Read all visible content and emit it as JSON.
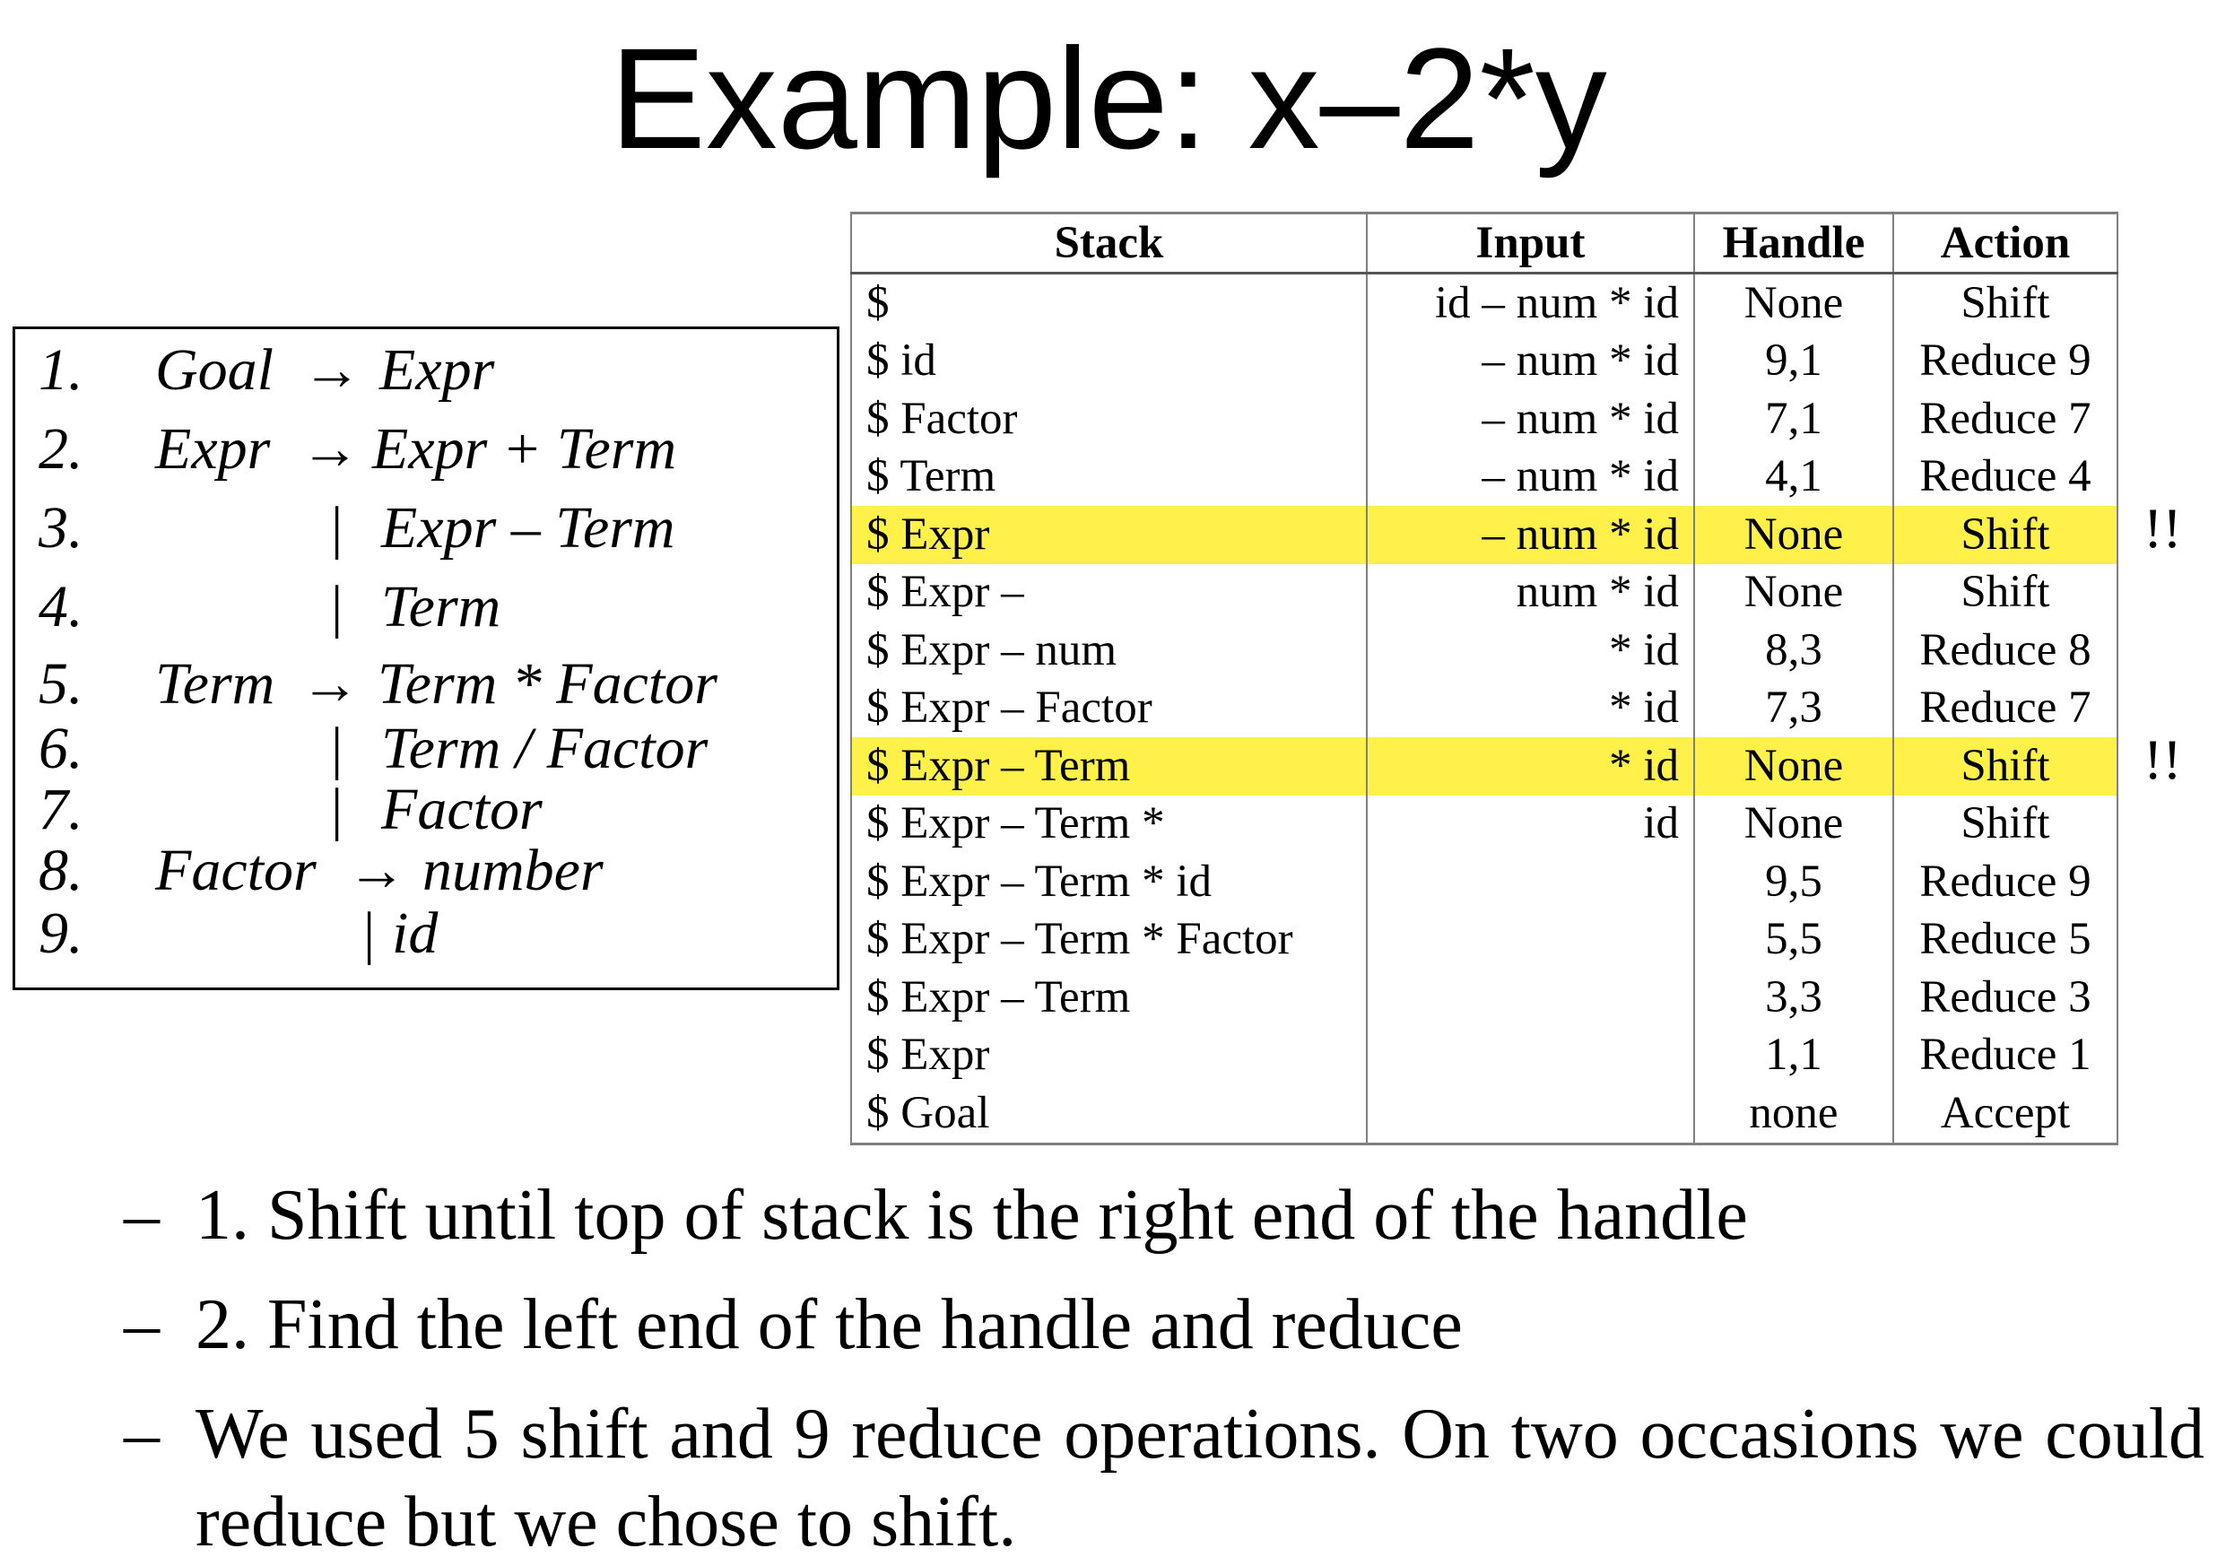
{
  "slide": {
    "title": "Example: x–2*y"
  },
  "grammar": [
    {
      "num": "1.",
      "lhs": "Goal",
      "arrow": "→",
      "bar": "",
      "rhs": "Expr"
    },
    {
      "num": "2.",
      "lhs": "Expr",
      "arrow": "→",
      "bar": "",
      "rhs": "Expr + Term"
    },
    {
      "num": "3.",
      "lhs": "",
      "arrow": "",
      "bar": "|",
      "rhs": "Expr – Term"
    },
    {
      "num": "4.",
      "lhs": "",
      "arrow": "",
      "bar": "|",
      "rhs": "Term"
    },
    {
      "num": "5.",
      "lhs": "Term",
      "arrow": "→",
      "bar": "",
      "rhs": "Term * Factor"
    },
    {
      "num": "6.",
      "lhs": "",
      "arrow": "",
      "bar": "|",
      "rhs": "Term / Factor"
    },
    {
      "num": "7.",
      "lhs": "",
      "arrow": "",
      "bar": "|",
      "rhs": "Factor"
    },
    {
      "num": "8.",
      "lhs": "Factor",
      "arrow": "→",
      "bar": "",
      "rhs": "number"
    },
    {
      "num": "9.",
      "lhs": "",
      "arrow": "",
      "bar": "|",
      "rhs": "id"
    }
  ],
  "table": {
    "headers": [
      "Stack",
      "Input",
      "Handle",
      "Action"
    ],
    "rows": [
      {
        "stack": "$",
        "input": "id – num * id",
        "handle": "None",
        "action": "Shift",
        "mark": ""
      },
      {
        "stack": "$ id",
        "input": "– num * id",
        "handle": "9,1",
        "action": "Reduce 9",
        "mark": ""
      },
      {
        "stack": "$ Factor",
        "input": "– num * id",
        "handle": "7,1",
        "action": "Reduce 7",
        "mark": ""
      },
      {
        "stack": "$ Term",
        "input": "– num * id",
        "handle": "4,1",
        "action": "Reduce 4",
        "mark": ""
      },
      {
        "stack": "$ Expr",
        "input": "– num * id",
        "handle": "None",
        "action": "Shift",
        "mark": "!!"
      },
      {
        "stack": "$ Expr –",
        "input": "num * id",
        "handle": "None",
        "action": "Shift",
        "mark": ""
      },
      {
        "stack": "$ Expr – num",
        "input": "* id",
        "handle": "8,3",
        "action": "Reduce 8",
        "mark": ""
      },
      {
        "stack": "$ Expr – Factor",
        "input": "* id",
        "handle": "7,3",
        "action": "Reduce 7",
        "mark": ""
      },
      {
        "stack": "$ Expr – Term",
        "input": "* id",
        "handle": "None",
        "action": "Shift",
        "mark": "!!"
      },
      {
        "stack": "$ Expr – Term *",
        "input": "id",
        "handle": "None",
        "action": "Shift",
        "mark": ""
      },
      {
        "stack": "$ Expr – Term * id",
        "input": "",
        "handle": "9,5",
        "action": "Reduce 9",
        "mark": ""
      },
      {
        "stack": "$ Expr – Term * Factor",
        "input": "",
        "handle": "5,5",
        "action": "Reduce 5",
        "mark": ""
      },
      {
        "stack": "$ Expr – Term",
        "input": "",
        "handle": "3,3",
        "action": "Reduce 3",
        "mark": ""
      },
      {
        "stack": "$ Expr",
        "input": "",
        "handle": "1,1",
        "action": "Reduce 1",
        "mark": ""
      },
      {
        "stack": "$ Goal",
        "input": "",
        "handle": "none",
        "action": "Accept",
        "mark": ""
      }
    ]
  },
  "bullets": [
    {
      "dash": "–",
      "text": "1. Shift until top of stack is the right end of the handle"
    },
    {
      "dash": "–",
      "text": "2. Find the left end of the handle and reduce"
    },
    {
      "dash": "–",
      "text": "We used 5 shift and 9 reduce operations. On two occasions we could reduce but we chose to shift."
    }
  ],
  "colors": {
    "highlight": "#fff04a"
  }
}
